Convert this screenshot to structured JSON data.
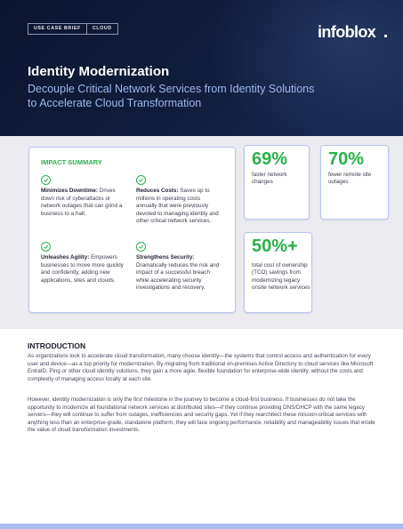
{
  "header": {
    "tag_left": "USE CASE BRIEF",
    "tag_right": "CLOUD",
    "logo_text": "infoblox",
    "title": "Identity Modernization",
    "subtitle": "Decouple Critical Network Services from Identity Solutions to Accelerate Cloud Transformation"
  },
  "impact": {
    "title": "IMPACT SUMMARY",
    "items": [
      {
        "heading": "Minimizes Downtime:",
        "body": " Drives down risk of cyberattacks or network outages that can grind a business to a halt."
      },
      {
        "heading": "Reduces Costs:",
        "body": " Saves up to millions in operating costs annually that were previously devoted to managing identity and other critical network services."
      },
      {
        "heading": "Unleashes Agility:",
        "body": " Empowers businesses to move more quickly and confidently, adding new applications, sites and clouds."
      },
      {
        "heading": "Strengthens Security:",
        "body": " Dramatically reduces the risk and impact of a successful breach while accelerating security investigations and recovery."
      }
    ]
  },
  "stats": [
    {
      "value": "69%",
      "label": "faster network changes"
    },
    {
      "value": "70%",
      "label": "fewer remote site outages"
    },
    {
      "value": "50%+",
      "label": "total cost of ownership (TCO) savings from modernizing legacy onsite network services"
    }
  ],
  "intro": {
    "heading": "INTRODUCTION",
    "p1": "As organizations look to accelerate cloud transformation, many choose identity—the systems that control access and authentication for every user and device—as a top priority for modernization. By migrating from traditional on-premises Active Directory to cloud services like Microsoft EntraID, Ping or other cloud identity solutions, they gain a more agile, flexible foundation for enterprise-wide identity, without the costs and complexity of managing access locally at each site.",
    "p2": "However, identity modernization is only the first milestone in the journey to become a cloud-first business. If businesses do not take the opportunity to modernize all foundational network services at distributed sites—if they continue providing DNS/DHCP with the same legacy servers—they will continue to suffer from outages, inefficiencies and security gaps. Yet if they rearchitect these mission-critical services with anything less than an enterprise-grade, standalone platform, they will face ongoing performance, reliability and manageability issues that erode the value of cloud transformation investments."
  },
  "colors": {
    "accent_green": "#2ab24a",
    "hero_navy": "#0b1630",
    "subtitle_blue": "#9fb6ef",
    "card_border": "#b9c5ee"
  }
}
